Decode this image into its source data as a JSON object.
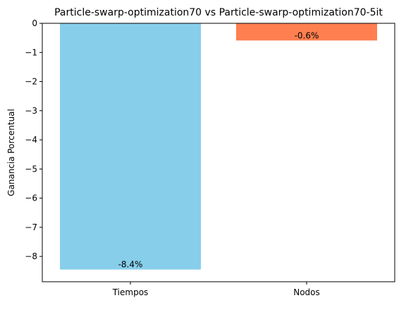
{
  "chart_data": {
    "type": "bar",
    "title": "Particle-swarp-optimization70 vs Particle-swarp-optimization70-5it",
    "xlabel": "",
    "ylabel": "Ganancia Porcentual",
    "categories": [
      "Tiempos",
      "Nodos"
    ],
    "values": [
      -8.45,
      -0.59
    ],
    "data_labels": [
      "-8.4%",
      "-0.6%"
    ],
    "bar_colors": [
      "#87CEEB",
      "#FF7F50"
    ],
    "ylim": [
      -8.87,
      0.0
    ],
    "yticks": [
      0,
      -1,
      -2,
      -3,
      -4,
      -5,
      -6,
      -7,
      -8
    ],
    "ytick_labels": [
      "0",
      "−1",
      "−2",
      "−3",
      "−4",
      "−5",
      "−6",
      "−7",
      "−8"
    ],
    "grid": false,
    "legend": "none"
  }
}
